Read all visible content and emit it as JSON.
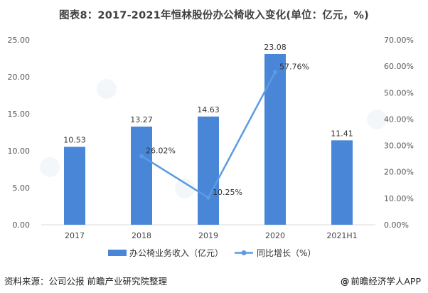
{
  "title": "图表8：2017-2021年恒林股份办公椅收入变化(单位：亿元，%)",
  "source": "资料来源：公司公报 前瞻产业研究院整理",
  "brand": {
    "glyph": "@",
    "text": "前瞻经济学人APP"
  },
  "chart_data": {
    "type": "bar",
    "categories": [
      "2017",
      "2018",
      "2019",
      "2020",
      "2021H1"
    ],
    "series": [
      {
        "name": "办公椅业务收入（亿元）",
        "type": "bar",
        "axis": "left",
        "values": [
          10.53,
          13.27,
          14.63,
          23.08,
          11.41
        ],
        "labels": [
          "10.53",
          "13.27",
          "14.63",
          "23.08",
          "11.41"
        ],
        "color": "#4a86d8"
      },
      {
        "name": "同比增长（%）",
        "type": "line",
        "axis": "right",
        "values": [
          null,
          26.02,
          10.25,
          57.76,
          null
        ],
        "labels": [
          "",
          "26.02%",
          "10.25%",
          "57.76%",
          ""
        ],
        "color": "#5b9be0"
      }
    ],
    "y_left": {
      "ylim": [
        0,
        25
      ],
      "ticks": [
        "0.00",
        "5.00",
        "10.00",
        "15.00",
        "20.00",
        "25.00"
      ]
    },
    "y_right": {
      "ylim": [
        0,
        70
      ],
      "ticks": [
        "0.00%",
        "10.00%",
        "20.00%",
        "30.00%",
        "40.00%",
        "50.00%",
        "60.00%",
        "70.00%"
      ]
    },
    "grid": false,
    "legend": "bottom"
  }
}
